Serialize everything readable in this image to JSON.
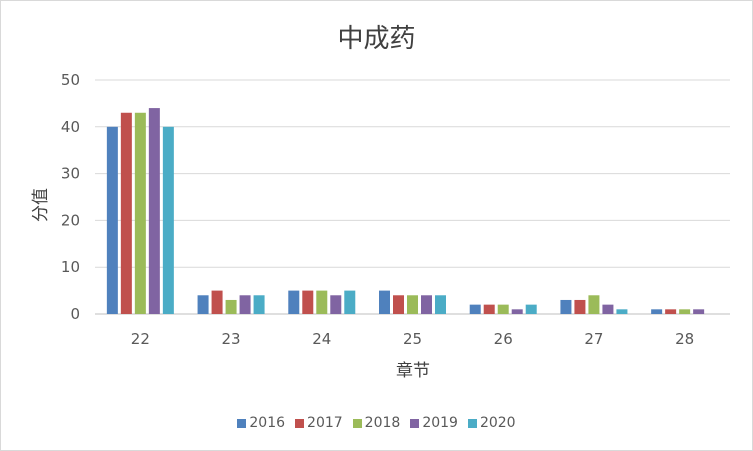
{
  "chart_data": {
    "type": "bar",
    "title": "中成药",
    "xlabel": "章节",
    "ylabel": "分值",
    "ylim": [
      0,
      50
    ],
    "yticks": [
      0,
      10,
      20,
      30,
      40,
      50
    ],
    "grid": true,
    "legend_position": "bottom",
    "categories": [
      "22",
      "23",
      "24",
      "25",
      "26",
      "27",
      "28"
    ],
    "series": [
      {
        "name": "2016",
        "color": "#4f81bd",
        "values": [
          40,
          4,
          5,
          5,
          2,
          3,
          1
        ]
      },
      {
        "name": "2017",
        "color": "#c0504d",
        "values": [
          43,
          5,
          5,
          4,
          2,
          3,
          1
        ]
      },
      {
        "name": "2018",
        "color": "#9bbb59",
        "values": [
          43,
          3,
          5,
          4,
          2,
          4,
          1
        ]
      },
      {
        "name": "2019",
        "color": "#8064a2",
        "values": [
          44,
          4,
          4,
          4,
          1,
          2,
          1
        ]
      },
      {
        "name": "2020",
        "color": "#4bacc6",
        "values": [
          40,
          4,
          5,
          4,
          2,
          1,
          0
        ]
      }
    ]
  }
}
